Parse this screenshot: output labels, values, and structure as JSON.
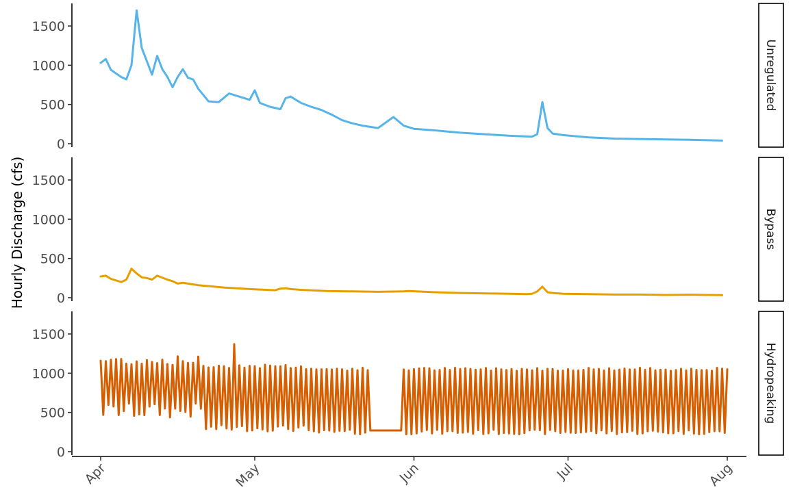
{
  "chart_data": {
    "type": "line",
    "title": "",
    "xlabel": "",
    "ylabel": "Hourly Discharge (cfs)",
    "x_ticks": [
      "Apr",
      "May",
      "Jun",
      "Jul",
      "Aug"
    ],
    "y_ticks": [
      0,
      500,
      1000,
      1500
    ],
    "xlim": [
      "2021-04-01",
      "2021-08-01"
    ],
    "ylim": [
      0,
      1750
    ],
    "grid": false,
    "legend": "none",
    "panels": [
      {
        "name": "Unregulated",
        "color": "#56B4E9",
        "x": [
          "04-01",
          "04-02",
          "04-03",
          "04-05",
          "04-06",
          "04-07",
          "04-08",
          "04-09",
          "04-10",
          "04-11",
          "04-12",
          "04-13",
          "04-14",
          "04-15",
          "04-16",
          "04-17",
          "04-18",
          "04-19",
          "04-20",
          "04-22",
          "04-24",
          "04-26",
          "04-28",
          "04-30",
          "05-01",
          "05-02",
          "05-04",
          "05-06",
          "05-07",
          "05-08",
          "05-10",
          "05-12",
          "05-14",
          "05-16",
          "05-18",
          "05-20",
          "05-22",
          "05-25",
          "05-28",
          "05-30",
          "05-31",
          "06-01",
          "06-05",
          "06-10",
          "06-15",
          "06-20",
          "06-24",
          "06-25",
          "06-26",
          "06-27",
          "06-28",
          "06-30",
          "07-05",
          "07-10",
          "07-15",
          "07-20",
          "07-25",
          "07-31"
        ],
        "y": [
          1030,
          1080,
          940,
          850,
          820,
          1000,
          1700,
          1220,
          1050,
          880,
          1120,
          950,
          850,
          720,
          850,
          950,
          840,
          820,
          700,
          540,
          530,
          640,
          600,
          560,
          680,
          520,
          470,
          440,
          580,
          600,
          520,
          470,
          430,
          370,
          300,
          260,
          230,
          200,
          340,
          230,
          210,
          190,
          170,
          140,
          120,
          100,
          90,
          120,
          530,
          200,
          130,
          110,
          80,
          65,
          60,
          55,
          50,
          40
        ]
      },
      {
        "name": "Bypass",
        "color": "#E69F00",
        "x": [
          "04-01",
          "04-02",
          "04-03",
          "04-05",
          "04-06",
          "04-07",
          "04-08",
          "04-09",
          "04-10",
          "04-11",
          "04-12",
          "04-14",
          "04-15",
          "04-16",
          "04-17",
          "04-18",
          "04-20",
          "04-25",
          "04-30",
          "05-05",
          "05-06",
          "05-07",
          "05-08",
          "05-10",
          "05-15",
          "05-20",
          "05-25",
          "05-30",
          "05-31",
          "06-05",
          "06-10",
          "06-15",
          "06-20",
          "06-23",
          "06-24",
          "06-25",
          "06-26",
          "06-27",
          "06-28",
          "06-30",
          "07-05",
          "07-10",
          "07-15",
          "07-20",
          "07-25",
          "07-31"
        ],
        "y": [
          270,
          280,
          240,
          200,
          230,
          370,
          310,
          260,
          250,
          230,
          280,
          230,
          210,
          180,
          190,
          180,
          160,
          130,
          110,
          95,
          115,
          120,
          110,
          100,
          85,
          80,
          75,
          80,
          85,
          70,
          60,
          55,
          50,
          45,
          50,
          80,
          140,
          70,
          60,
          50,
          45,
          40,
          40,
          35,
          38,
          32
        ]
      },
      {
        "name": "Hydropeaking",
        "color": "#D55E00",
        "x": [],
        "y": []
      }
    ]
  }
}
